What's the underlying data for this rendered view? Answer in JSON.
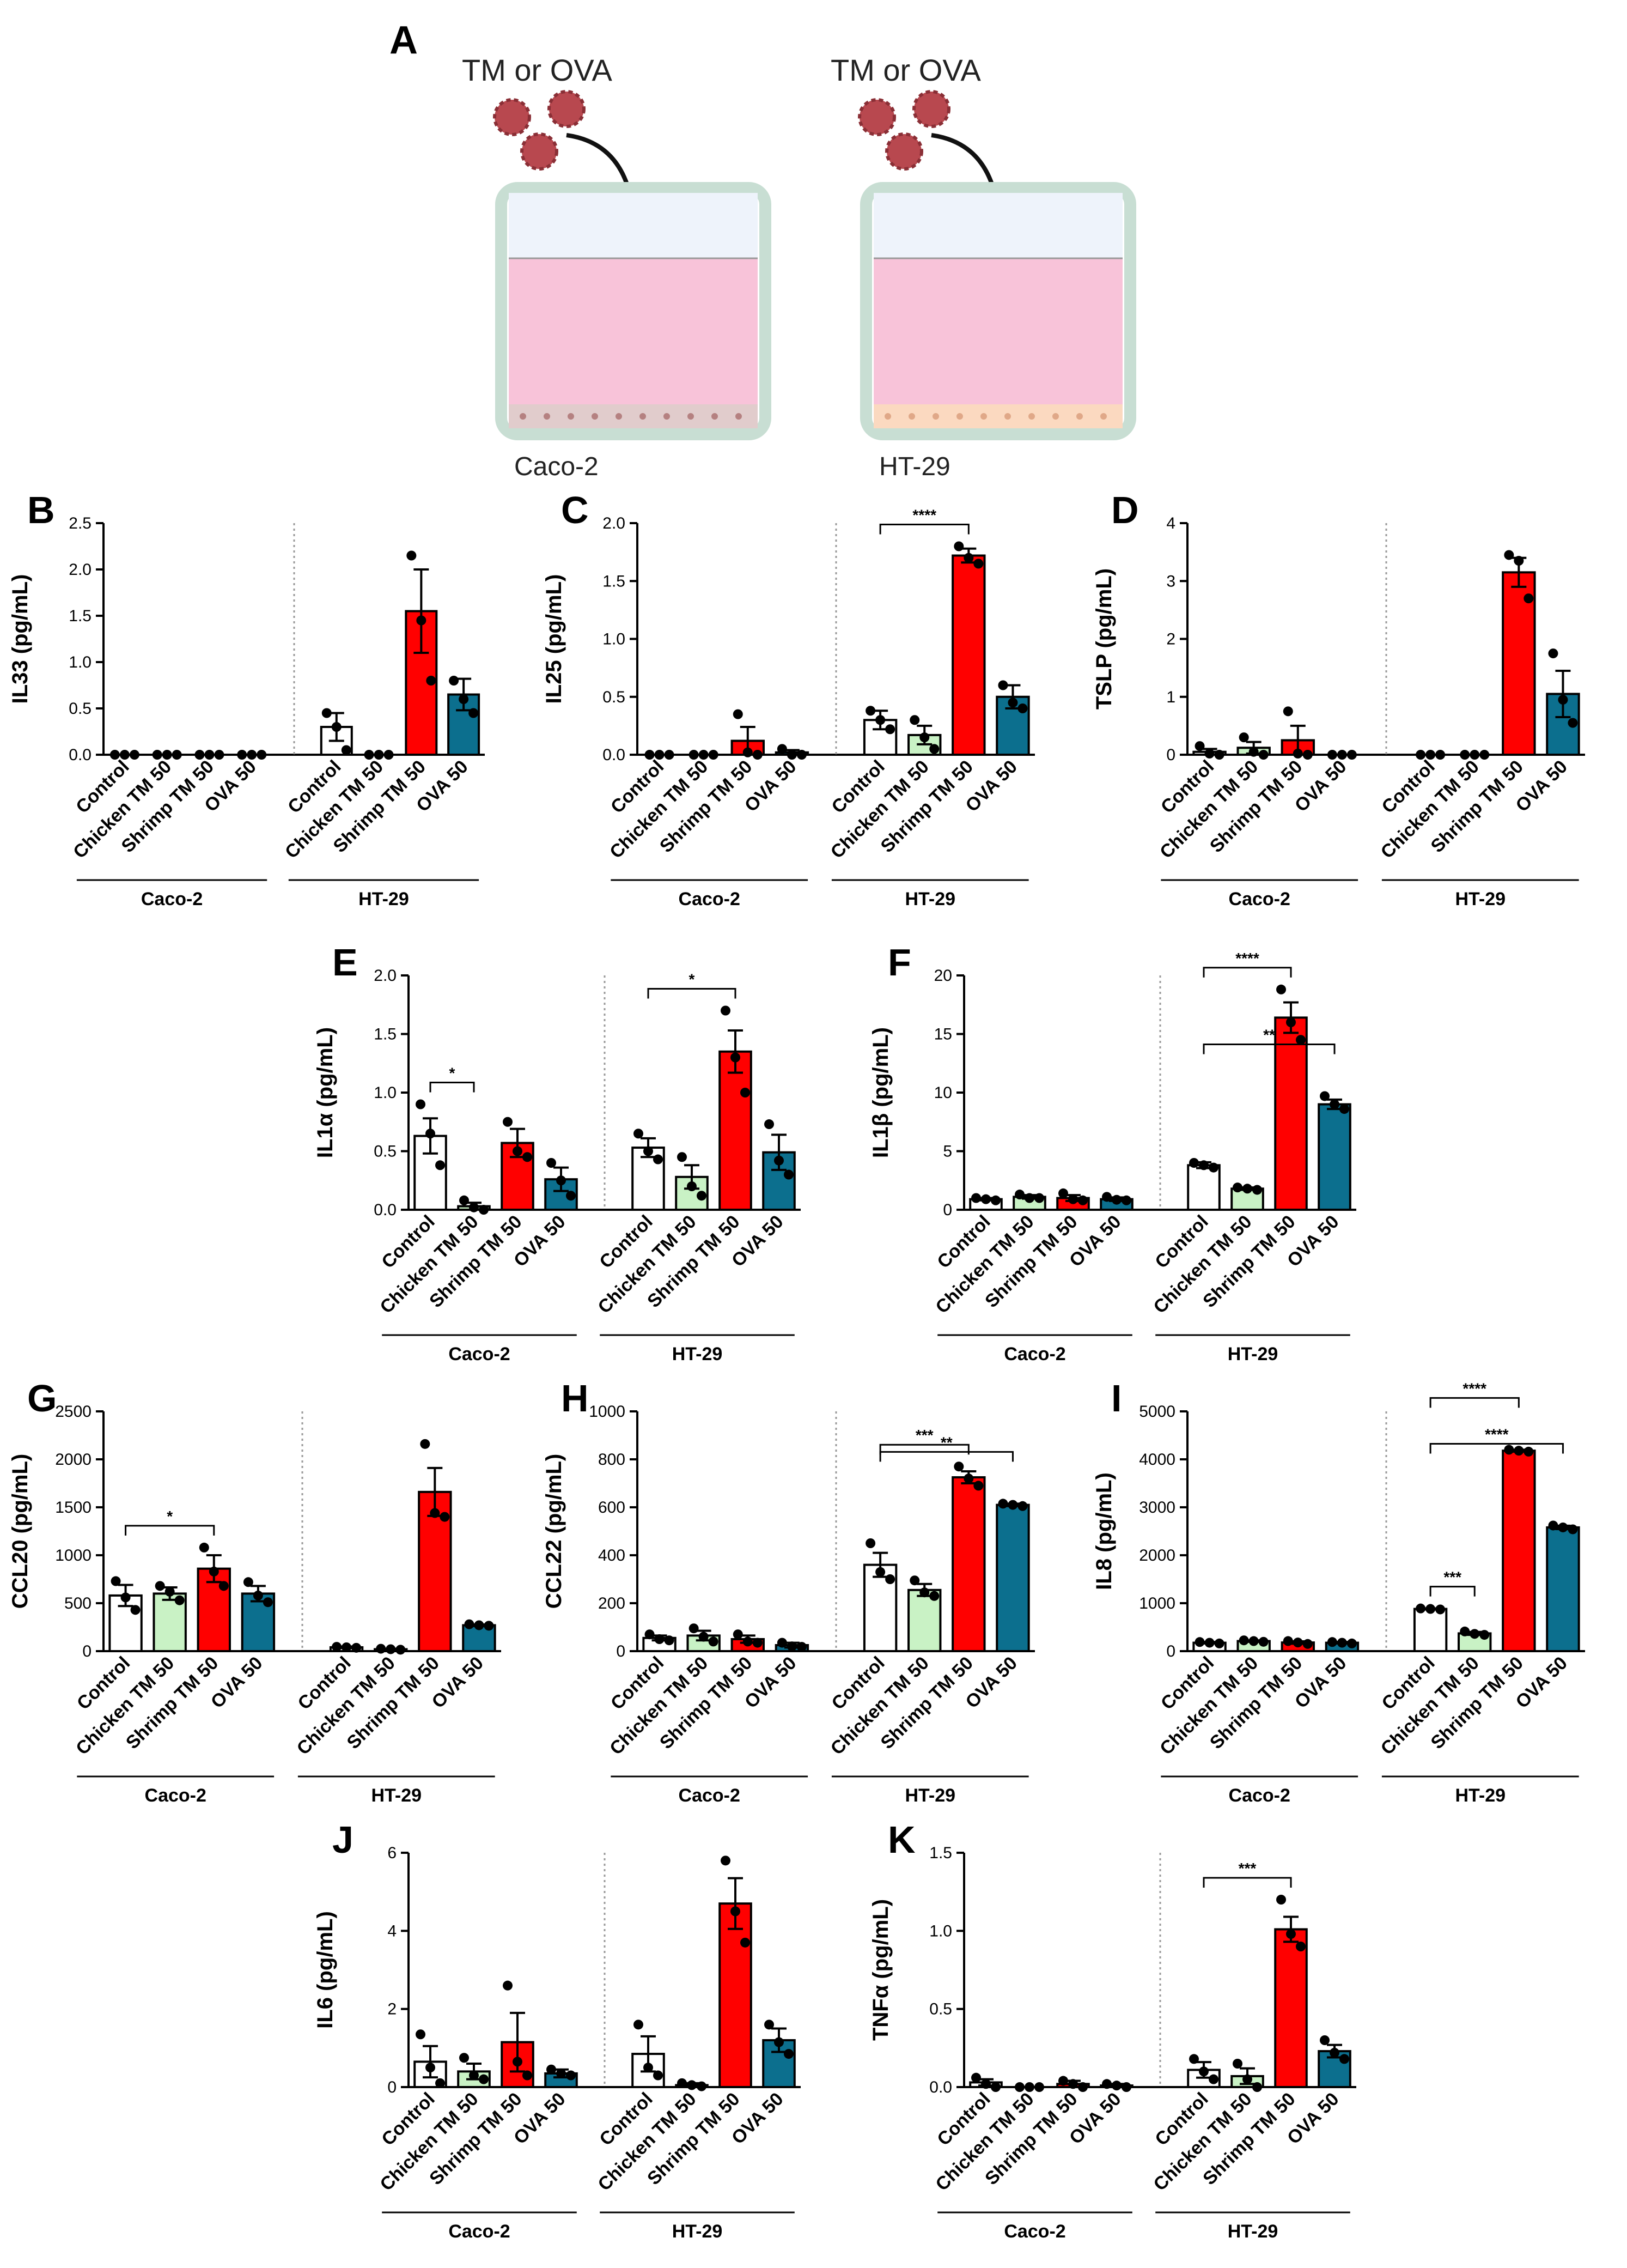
{
  "figure": {
    "panel_a": {
      "letter": "A",
      "left_label": "TM or OVA",
      "right_label": "TM or OVA",
      "left_cell": "Caco-2",
      "right_cell": "HT-29",
      "colors": {
        "apical": "#eef3fb",
        "medium": "#f8c3d9",
        "caco_layer": "#e1cccc",
        "ht_layer": "#fbd9c0",
        "well": "#c8ded3",
        "particle": "#b8484f"
      }
    },
    "groups": [
      "Caco-2",
      "HT-29"
    ],
    "categories": [
      "Control",
      "Chicken TM 50",
      "Shrimp TM 50",
      "OVA 50"
    ],
    "bar_colors": [
      "#ffffff",
      "#c9f2c5",
      "#ff0000",
      "#0c6f8e"
    ]
  },
  "chart_data": [
    {
      "panel": "B",
      "type": "bar",
      "ylabel": "IL33 (pg/mL)",
      "ylim": [
        0,
        2.5
      ],
      "yticks": [
        "0.0",
        "0.5",
        "1.0",
        "1.5",
        "2.0",
        "2.5"
      ],
      "categories": [
        "Control",
        "Chicken TM 50",
        "Shrimp TM 50",
        "OVA 50"
      ],
      "series": [
        {
          "name": "Caco-2",
          "values": [
            0,
            0,
            0,
            0
          ],
          "errors": [
            0,
            0,
            0,
            0
          ],
          "points": [
            [
              0,
              0,
              0
            ],
            [
              0,
              0,
              0
            ],
            [
              0,
              0,
              0
            ],
            [
              0,
              0,
              0
            ]
          ]
        },
        {
          "name": "HT-29",
          "values": [
            0.3,
            0,
            1.55,
            0.65
          ],
          "errors": [
            0.15,
            0,
            0.45,
            0.17
          ],
          "points": [
            [
              0.45,
              0.3,
              0.05
            ],
            [
              0,
              0,
              0
            ],
            [
              2.15,
              1.45,
              0.8
            ],
            [
              0.8,
              0.6,
              0.45
            ]
          ]
        }
      ],
      "significance": []
    },
    {
      "panel": "C",
      "type": "bar",
      "ylabel": "IL25 (pg/mL)",
      "ylim": [
        0,
        2.0
      ],
      "yticks": [
        "0.0",
        "0.5",
        "1.0",
        "1.5",
        "2.0"
      ],
      "categories": [
        "Control",
        "Chicken TM 50",
        "Shrimp TM 50",
        "OVA 50"
      ],
      "series": [
        {
          "name": "Caco-2",
          "values": [
            0,
            0,
            0.12,
            0.02
          ],
          "errors": [
            0,
            0,
            0.12,
            0.02
          ],
          "points": [
            [
              0,
              0,
              0
            ],
            [
              0,
              0,
              0
            ],
            [
              0.35,
              0.02,
              0.0
            ],
            [
              0.05,
              0.0,
              0.0
            ]
          ]
        },
        {
          "name": "HT-29",
          "values": [
            0.3,
            0.17,
            1.72,
            0.5
          ],
          "errors": [
            0.08,
            0.08,
            0.06,
            0.1
          ],
          "points": [
            [
              0.38,
              0.3,
              0.22
            ],
            [
              0.3,
              0.15,
              0.05
            ],
            [
              1.8,
              1.7,
              1.65
            ],
            [
              0.6,
              0.45,
              0.4
            ]
          ]
        }
      ],
      "significance": [
        {
          "from_group": 1,
          "from_cat": 0,
          "to_group": 1,
          "to_cat": 2,
          "label": "****",
          "level": 0
        }
      ]
    },
    {
      "panel": "D",
      "type": "bar",
      "ylabel": "TSLP (pg/mL)",
      "ylim": [
        0,
        4
      ],
      "yticks": [
        "0",
        "1",
        "2",
        "3",
        "4"
      ],
      "categories": [
        "Control",
        "Chicken TM 50",
        "Shrimp TM 50",
        "OVA 50"
      ],
      "series": [
        {
          "name": "Caco-2",
          "values": [
            0.05,
            0.12,
            0.25,
            0
          ],
          "errors": [
            0.05,
            0.1,
            0.25,
            0
          ],
          "points": [
            [
              0.15,
              0.02,
              0.0
            ],
            [
              0.3,
              0.05,
              0.0
            ],
            [
              0.75,
              0.02,
              0.0
            ],
            [
              0,
              0,
              0
            ]
          ]
        },
        {
          "name": "HT-29",
          "values": [
            0,
            0,
            3.15,
            1.05
          ],
          "errors": [
            0,
            0,
            0.25,
            0.4
          ],
          "points": [
            [
              0,
              0,
              0
            ],
            [
              0,
              0,
              0
            ],
            [
              3.45,
              3.35,
              2.7
            ],
            [
              1.75,
              0.95,
              0.55
            ]
          ]
        }
      ],
      "significance": []
    },
    {
      "panel": "E",
      "type": "bar",
      "ylabel": "IL1α (pg/mL)",
      "ylim": [
        0,
        2.0
      ],
      "yticks": [
        "0.0",
        "0.5",
        "1.0",
        "1.5",
        "2.0"
      ],
      "categories": [
        "Control",
        "Chicken TM 50",
        "Shrimp TM 50",
        "OVA 50"
      ],
      "series": [
        {
          "name": "Caco-2",
          "values": [
            0.63,
            0.03,
            0.57,
            0.26
          ],
          "errors": [
            0.15,
            0.03,
            0.12,
            0.1
          ],
          "points": [
            [
              0.9,
              0.65,
              0.38
            ],
            [
              0.08,
              0.02,
              0.0
            ],
            [
              0.75,
              0.5,
              0.45
            ],
            [
              0.4,
              0.25,
              0.12
            ]
          ]
        },
        {
          "name": "HT-29",
          "values": [
            0.53,
            0.28,
            1.35,
            0.49
          ],
          "errors": [
            0.08,
            0.1,
            0.18,
            0.15
          ],
          "points": [
            [
              0.65,
              0.5,
              0.43
            ],
            [
              0.45,
              0.2,
              0.12
            ],
            [
              1.7,
              1.3,
              1.0
            ],
            [
              0.73,
              0.42,
              0.3
            ]
          ]
        }
      ],
      "significance": [
        {
          "from_group": 0,
          "from_cat": 0,
          "to_group": 0,
          "to_cat": 1,
          "label": "*",
          "level": 0
        },
        {
          "from_group": 1,
          "from_cat": 0,
          "to_group": 1,
          "to_cat": 2,
          "label": "*",
          "level": 0
        }
      ]
    },
    {
      "panel": "F",
      "type": "bar",
      "ylabel": "IL1β (pg/mL)",
      "ylim": [
        0,
        20
      ],
      "yticks": [
        "0",
        "5",
        "10",
        "15",
        "20"
      ],
      "categories": [
        "Control",
        "Chicken TM 50",
        "Shrimp TM 50",
        "OVA 50"
      ],
      "series": [
        {
          "name": "Caco-2",
          "values": [
            0.9,
            1.1,
            1.0,
            0.9
          ],
          "errors": [
            0.1,
            0.15,
            0.25,
            0.15
          ],
          "points": [
            [
              1.0,
              0.9,
              0.8
            ],
            [
              1.3,
              1.0,
              1.0
            ],
            [
              1.4,
              0.9,
              0.8
            ],
            [
              1.1,
              0.85,
              0.8
            ]
          ]
        },
        {
          "name": "HT-29",
          "values": [
            3.8,
            1.8,
            16.4,
            9.0
          ],
          "errors": [
            0.25,
            0.1,
            1.3,
            0.4
          ],
          "points": [
            [
              4.0,
              3.8,
              3.6
            ],
            [
              1.9,
              1.8,
              1.7
            ],
            [
              18.8,
              16.0,
              14.5
            ],
            [
              9.7,
              9.0,
              8.6
            ]
          ]
        }
      ],
      "significance": [
        {
          "from_group": 1,
          "from_cat": 0,
          "to_group": 1,
          "to_cat": 2,
          "label": "****",
          "level": 0
        },
        {
          "from_group": 1,
          "from_cat": 0,
          "to_group": 1,
          "to_cat": 3,
          "label": "**",
          "level": 1
        }
      ]
    },
    {
      "panel": "G",
      "type": "bar",
      "ylabel": "CCL20 (pg/mL)",
      "ylim": [
        0,
        2500
      ],
      "yticks": [
        "0",
        "500",
        "1000",
        "1500",
        "2000",
        "2500"
      ],
      "categories": [
        "Control",
        "Chicken TM 50",
        "Shrimp TM 50",
        "OVA 50"
      ],
      "series": [
        {
          "name": "Caco-2",
          "values": [
            580,
            600,
            860,
            600
          ],
          "errors": [
            110,
            65,
            140,
            80
          ],
          "points": [
            [
              730,
              560,
              430
            ],
            [
              680,
              620,
              530
            ],
            [
              1080,
              830,
              680
            ],
            [
              720,
              580,
              510
            ]
          ]
        },
        {
          "name": "HT-29",
          "values": [
            40,
            20,
            1660,
            270
          ],
          "errors": [
            8,
            5,
            250,
            8
          ],
          "points": [
            [
              45,
              40,
              35
            ],
            [
              25,
              20,
              15
            ],
            [
              2160,
              1440,
              1400
            ],
            [
              280,
              270,
              265
            ]
          ]
        }
      ],
      "significance": [
        {
          "from_group": 0,
          "from_cat": 0,
          "to_group": 0,
          "to_cat": 2,
          "label": "*",
          "level": 0
        }
      ]
    },
    {
      "panel": "H",
      "type": "bar",
      "ylabel": "CCL22 (pg/mL)",
      "ylim": [
        0,
        1000
      ],
      "yticks": [
        "0",
        "200",
        "400",
        "600",
        "800",
        "1000"
      ],
      "categories": [
        "Control",
        "Chicken TM 50",
        "Shrimp TM 50",
        "OVA 50"
      ],
      "series": [
        {
          "name": "Caco-2",
          "values": [
            55,
            65,
            50,
            25
          ],
          "errors": [
            10,
            20,
            15,
            10
          ],
          "points": [
            [
              70,
              50,
              45
            ],
            [
              95,
              60,
              40
            ],
            [
              70,
              40,
              35
            ],
            [
              35,
              20,
              18
            ]
          ]
        },
        {
          "name": "HT-29",
          "values": [
            360,
            255,
            725,
            610
          ],
          "errors": [
            50,
            25,
            25,
            5
          ],
          "points": [
            [
              450,
              330,
              300
            ],
            [
              295,
              245,
              230
            ],
            [
              770,
              720,
              690
            ],
            [
              615,
              610,
              605
            ]
          ]
        }
      ],
      "significance": [
        {
          "from_group": 1,
          "from_cat": 0,
          "to_group": 1,
          "to_cat": 2,
          "label": "***",
          "level": 0
        },
        {
          "from_group": 1,
          "from_cat": 0,
          "to_group": 1,
          "to_cat": 3,
          "label": "**",
          "level": 1
        }
      ]
    },
    {
      "panel": "I",
      "type": "bar",
      "ylabel": "IL8 (pg/mL)",
      "ylim": [
        0,
        5000
      ],
      "yticks": [
        "0",
        "1000",
        "2000",
        "3000",
        "4000",
        "5000"
      ],
      "categories": [
        "Control",
        "Chicken TM 50",
        "Shrimp TM 50",
        "OVA 50"
      ],
      "series": [
        {
          "name": "Caco-2",
          "values": [
            175,
            210,
            180,
            175
          ],
          "errors": [
            15,
            15,
            25,
            15
          ],
          "points": [
            [
              190,
              175,
              160
            ],
            [
              225,
              210,
              195
            ],
            [
              210,
              180,
              150
            ],
            [
              190,
              175,
              160
            ]
          ]
        },
        {
          "name": "HT-29",
          "values": [
            880,
            370,
            4180,
            2580
          ],
          "errors": [
            10,
            30,
            20,
            35
          ],
          "points": [
            [
              890,
              880,
              870
            ],
            [
              410,
              360,
              340
            ],
            [
              4200,
              4180,
              4160
            ],
            [
              2620,
              2580,
              2540
            ]
          ]
        }
      ],
      "significance": [
        {
          "from_group": 1,
          "from_cat": 0,
          "to_group": 1,
          "to_cat": 1,
          "label": "***",
          "level": 0
        },
        {
          "from_group": 1,
          "from_cat": 0,
          "to_group": 1,
          "to_cat": 2,
          "label": "****",
          "level": 1
        },
        {
          "from_group": 1,
          "from_cat": 0,
          "to_group": 1,
          "to_cat": 3,
          "label": "****",
          "level": 2
        }
      ]
    },
    {
      "panel": "J",
      "type": "bar",
      "ylabel": "IL6 (pg/mL)",
      "ylim": [
        0,
        6
      ],
      "yticks": [
        "0",
        "2",
        "4",
        "6"
      ],
      "categories": [
        "Control",
        "Chicken TM 50",
        "Shrimp TM 50",
        "OVA 50"
      ],
      "series": [
        {
          "name": "Caco-2",
          "values": [
            0.65,
            0.4,
            1.15,
            0.35
          ],
          "errors": [
            0.4,
            0.2,
            0.75,
            0.1
          ],
          "points": [
            [
              1.35,
              0.5,
              0.1
            ],
            [
              0.75,
              0.3,
              0.2
            ],
            [
              2.6,
              0.65,
              0.3
            ],
            [
              0.45,
              0.35,
              0.3
            ]
          ]
        },
        {
          "name": "HT-29",
          "values": [
            0.85,
            0.05,
            4.7,
            1.2
          ],
          "errors": [
            0.45,
            0.05,
            0.65,
            0.3
          ],
          "points": [
            [
              1.6,
              0.5,
              0.3
            ],
            [
              0.1,
              0.05,
              0.02
            ],
            [
              5.8,
              4.5,
              3.7
            ],
            [
              1.6,
              1.15,
              0.85
            ]
          ]
        }
      ],
      "significance": []
    },
    {
      "panel": "K",
      "type": "bar",
      "ylabel": "TNFα (pg/mL)",
      "ylim": [
        0,
        1.5
      ],
      "yticks": [
        "0.0",
        "0.5",
        "1.0",
        "1.5"
      ],
      "categories": [
        "Control",
        "Chicken TM 50",
        "Shrimp TM 50",
        "OVA 50"
      ],
      "series": [
        {
          "name": "Caco-2",
          "values": [
            0.03,
            0.0,
            0.02,
            0.01
          ],
          "errors": [
            0.02,
            0.0,
            0.02,
            0.01
          ],
          "points": [
            [
              0.06,
              0.02,
              0.0
            ],
            [
              0,
              0,
              0
            ],
            [
              0.04,
              0.02,
              0.0
            ],
            [
              0.02,
              0.01,
              0.0
            ]
          ]
        },
        {
          "name": "HT-29",
          "values": [
            0.11,
            0.07,
            1.01,
            0.23
          ],
          "errors": [
            0.05,
            0.05,
            0.08,
            0.04
          ],
          "points": [
            [
              0.18,
              0.1,
              0.05
            ],
            [
              0.15,
              0.05,
              0.0
            ],
            [
              1.2,
              0.98,
              0.9
            ],
            [
              0.3,
              0.22,
              0.18
            ]
          ]
        }
      ],
      "significance": [
        {
          "from_group": 1,
          "from_cat": 0,
          "to_group": 1,
          "to_cat": 2,
          "label": "***",
          "level": 0
        }
      ]
    }
  ]
}
